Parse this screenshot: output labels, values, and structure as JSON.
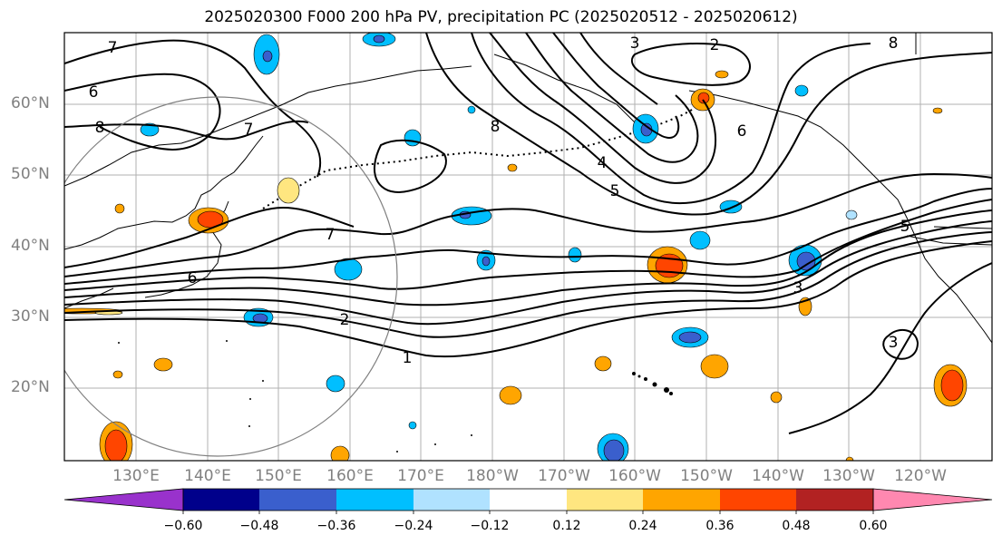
{
  "title": "2025020300 F000 200 hPa PV, precipitation PC (2025020512 - 2025020612)",
  "lat_labels": [
    "60°N",
    "50°N",
    "40°N",
    "30°N",
    "20°N"
  ],
  "lon_labels": [
    "130°E",
    "140°E",
    "150°E",
    "160°E",
    "170°E",
    "180°W",
    "170°W",
    "160°W",
    "150°W",
    "140°W",
    "130°W",
    "120°W"
  ],
  "contour_labels": [
    "7",
    "6",
    "8",
    "7",
    "7",
    "6",
    "2",
    "1",
    "3",
    "2",
    "8",
    "8",
    "6",
    "4",
    "5",
    "5",
    "3",
    "3"
  ],
  "colorbar": {
    "ticks": [
      "−0.60",
      "−0.48",
      "−0.36",
      "−0.24",
      "−0.12",
      "0.12",
      "0.24",
      "0.36",
      "0.48",
      "0.60"
    ],
    "colors": [
      "#9932cc",
      "#00008b",
      "#3a5fcd",
      "#00bfff",
      "#b0e2ff",
      "#ffffff",
      "#ffe680",
      "#ffa500",
      "#ff4500",
      "#b22222",
      "#ff88b0"
    ]
  }
}
